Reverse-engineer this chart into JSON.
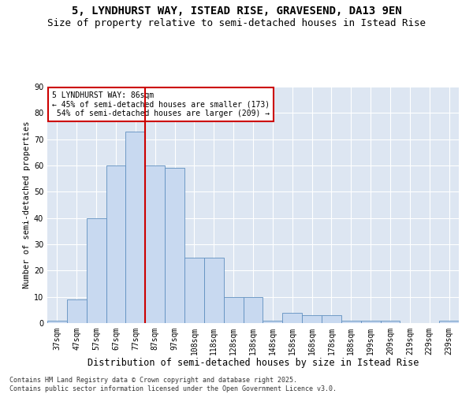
{
  "title1": "5, LYNDHURST WAY, ISTEAD RISE, GRAVESEND, DA13 9EN",
  "title2": "Size of property relative to semi-detached houses in Istead Rise",
  "xlabel": "Distribution of semi-detached houses by size in Istead Rise",
  "ylabel": "Number of semi-detached properties",
  "categories": [
    "37sqm",
    "47sqm",
    "57sqm",
    "67sqm",
    "77sqm",
    "87sqm",
    "97sqm",
    "108sqm",
    "118sqm",
    "128sqm",
    "138sqm",
    "148sqm",
    "158sqm",
    "168sqm",
    "178sqm",
    "188sqm",
    "199sqm",
    "209sqm",
    "219sqm",
    "229sqm",
    "239sqm"
  ],
  "values": [
    1,
    9,
    40,
    60,
    73,
    60,
    59,
    25,
    25,
    10,
    10,
    1,
    4,
    3,
    3,
    1,
    1,
    1,
    0,
    0,
    1
  ],
  "bar_color": "#c8d9f0",
  "bar_edge_color": "#6090c0",
  "vline_color": "#cc0000",
  "annotation_box_color": "#cc0000",
  "property_label": "5 LYNDHURST WAY: 86sqm",
  "smaller_pct": "45%",
  "smaller_n": 173,
  "larger_pct": "54%",
  "larger_n": 209,
  "ylim": [
    0,
    90
  ],
  "yticks": [
    0,
    10,
    20,
    30,
    40,
    50,
    60,
    70,
    80,
    90
  ],
  "background_color": "#dde6f2",
  "footer": "Contains HM Land Registry data © Crown copyright and database right 2025.\nContains public sector information licensed under the Open Government Licence v3.0.",
  "title1_fontsize": 10,
  "title2_fontsize": 9,
  "xlabel_fontsize": 8.5,
  "ylabel_fontsize": 7.5,
  "tick_fontsize": 7,
  "footer_fontsize": 6,
  "vline_index": 4.5
}
